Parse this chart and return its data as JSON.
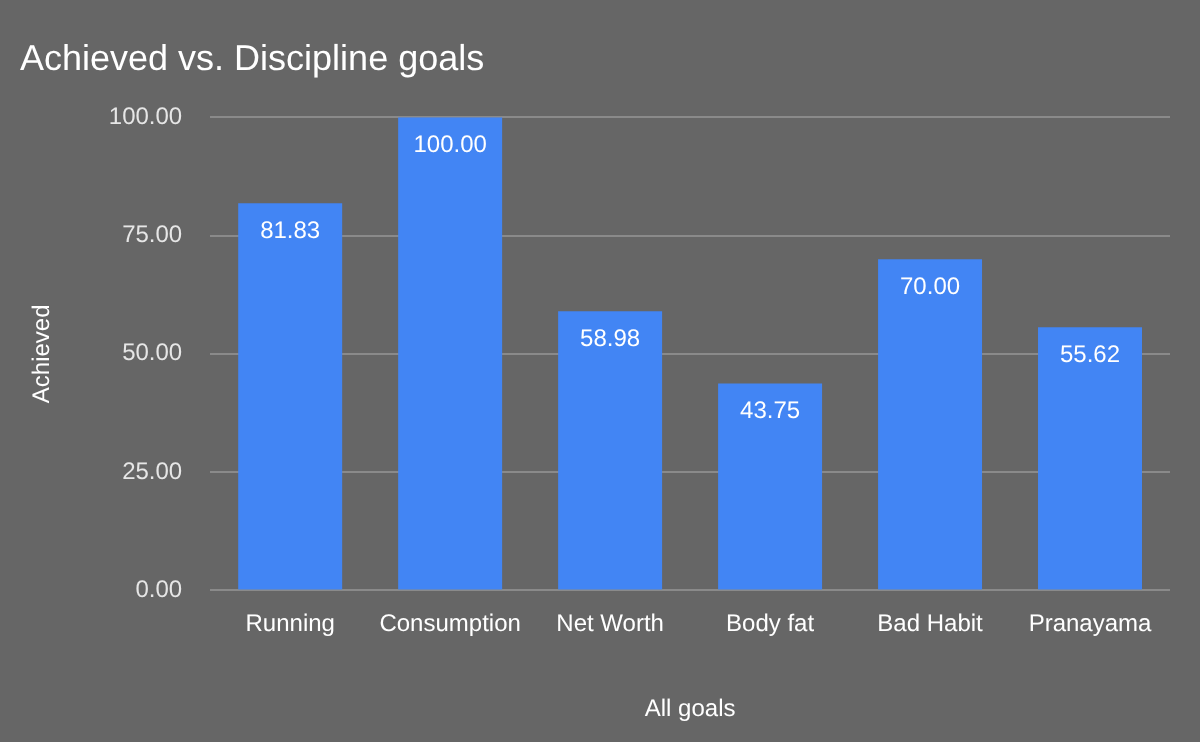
{
  "chart_data": {
    "type": "bar",
    "title": "Achieved vs. Discipline goals",
    "xlabel": "All goals",
    "ylabel": "Achieved",
    "categories": [
      "Running",
      "Consumption",
      "Net Worth",
      "Body fat",
      "Bad Habit",
      "Pranayama"
    ],
    "values": [
      81.83,
      100,
      58.98,
      43.75,
      70,
      55.62
    ],
    "value_labels": [
      "81.83",
      "100.00",
      "58.98",
      "43.75",
      "70.00",
      "55.62"
    ],
    "color": "#4285f4",
    "ylim": [
      0,
      100
    ],
    "yticks": [
      {
        "value": 0,
        "label": "0.00"
      },
      {
        "value": 25,
        "label": "25.00"
      },
      {
        "value": 50,
        "label": "50.00"
      },
      {
        "value": 75,
        "label": "75.00"
      },
      {
        "value": 100,
        "label": "100.00"
      }
    ],
    "grid": "y",
    "legend": false
  }
}
